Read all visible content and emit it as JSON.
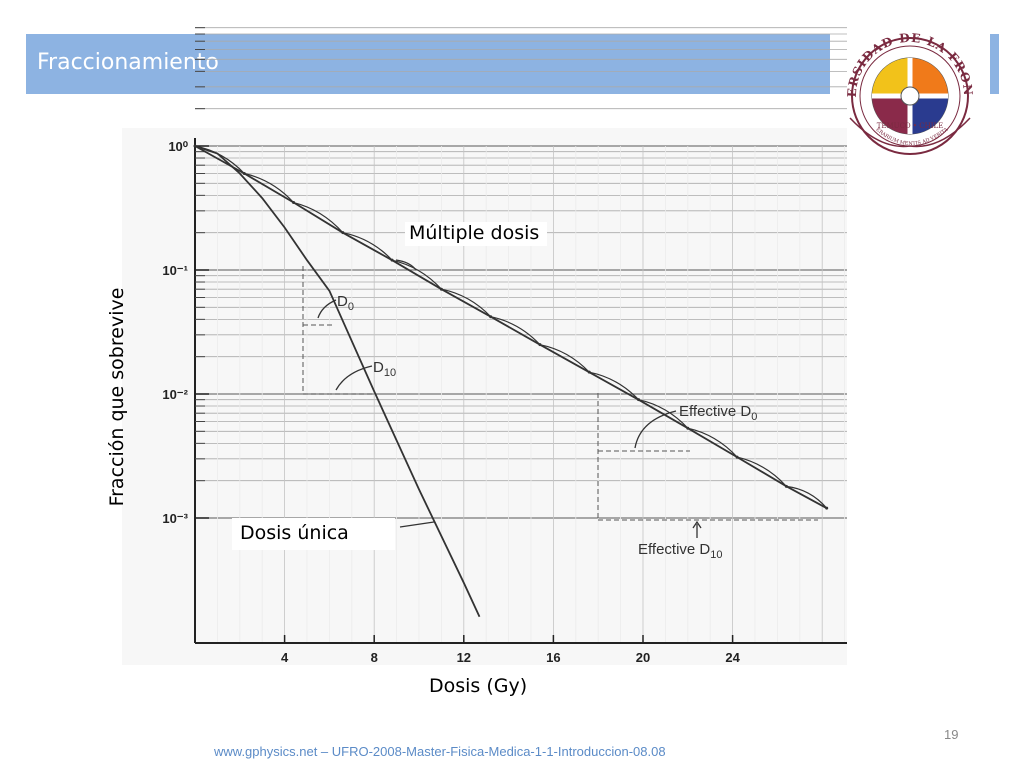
{
  "slide": {
    "title": "Fraccionamiento",
    "page_number": "19",
    "footer": "www.gphysics.net – UFRO-2008-Master-Fisica-Medica-1-1-Introduccion-08.08"
  },
  "logo": {
    "text": "UNIVERSIDAD DE LA FRONTERA",
    "city": "TEMUCO • CHILE",
    "motto": "ITINERARIUM MENTIS AD VERITATEM"
  },
  "chart_data": {
    "type": "line",
    "xlabel": "Dosis (Gy)",
    "ylabel": "Fracción que sobrevive",
    "x_ticks": [
      4,
      8,
      12,
      16,
      20,
      24
    ],
    "y_ticks": [
      "10⁰",
      "10⁻¹",
      "10⁻²",
      "10⁻³"
    ],
    "y_scale": "log",
    "xlim": [
      0,
      29
    ],
    "ylim": [
      0.00015,
      1
    ],
    "series": [
      {
        "name": "Múltiple dosis",
        "x": [
          0,
          2.2,
          4.4,
          6.6,
          8.8,
          11,
          13.2,
          15.4,
          17.6,
          19.8,
          22,
          24.2,
          26.4,
          28.2
        ],
        "y": [
          1,
          0.6,
          0.35,
          0.2,
          0.12,
          0.07,
          0.042,
          0.025,
          0.015,
          0.009,
          0.0053,
          0.0031,
          0.0018,
          0.0012
        ]
      },
      {
        "name": "Dosis única",
        "x": [
          0,
          1,
          2,
          3,
          4,
          5,
          6,
          8,
          10,
          12,
          12.7
        ],
        "y": [
          1,
          0.87,
          0.6,
          0.38,
          0.22,
          0.12,
          0.068,
          0.0105,
          0.0017,
          0.0003,
          0.00016
        ]
      }
    ],
    "annotations": [
      "Múltiple dosis",
      "Dosis única",
      "D",
      "0",
      "D",
      "10",
      "Effective D",
      "0",
      "Effective D",
      "10"
    ]
  }
}
